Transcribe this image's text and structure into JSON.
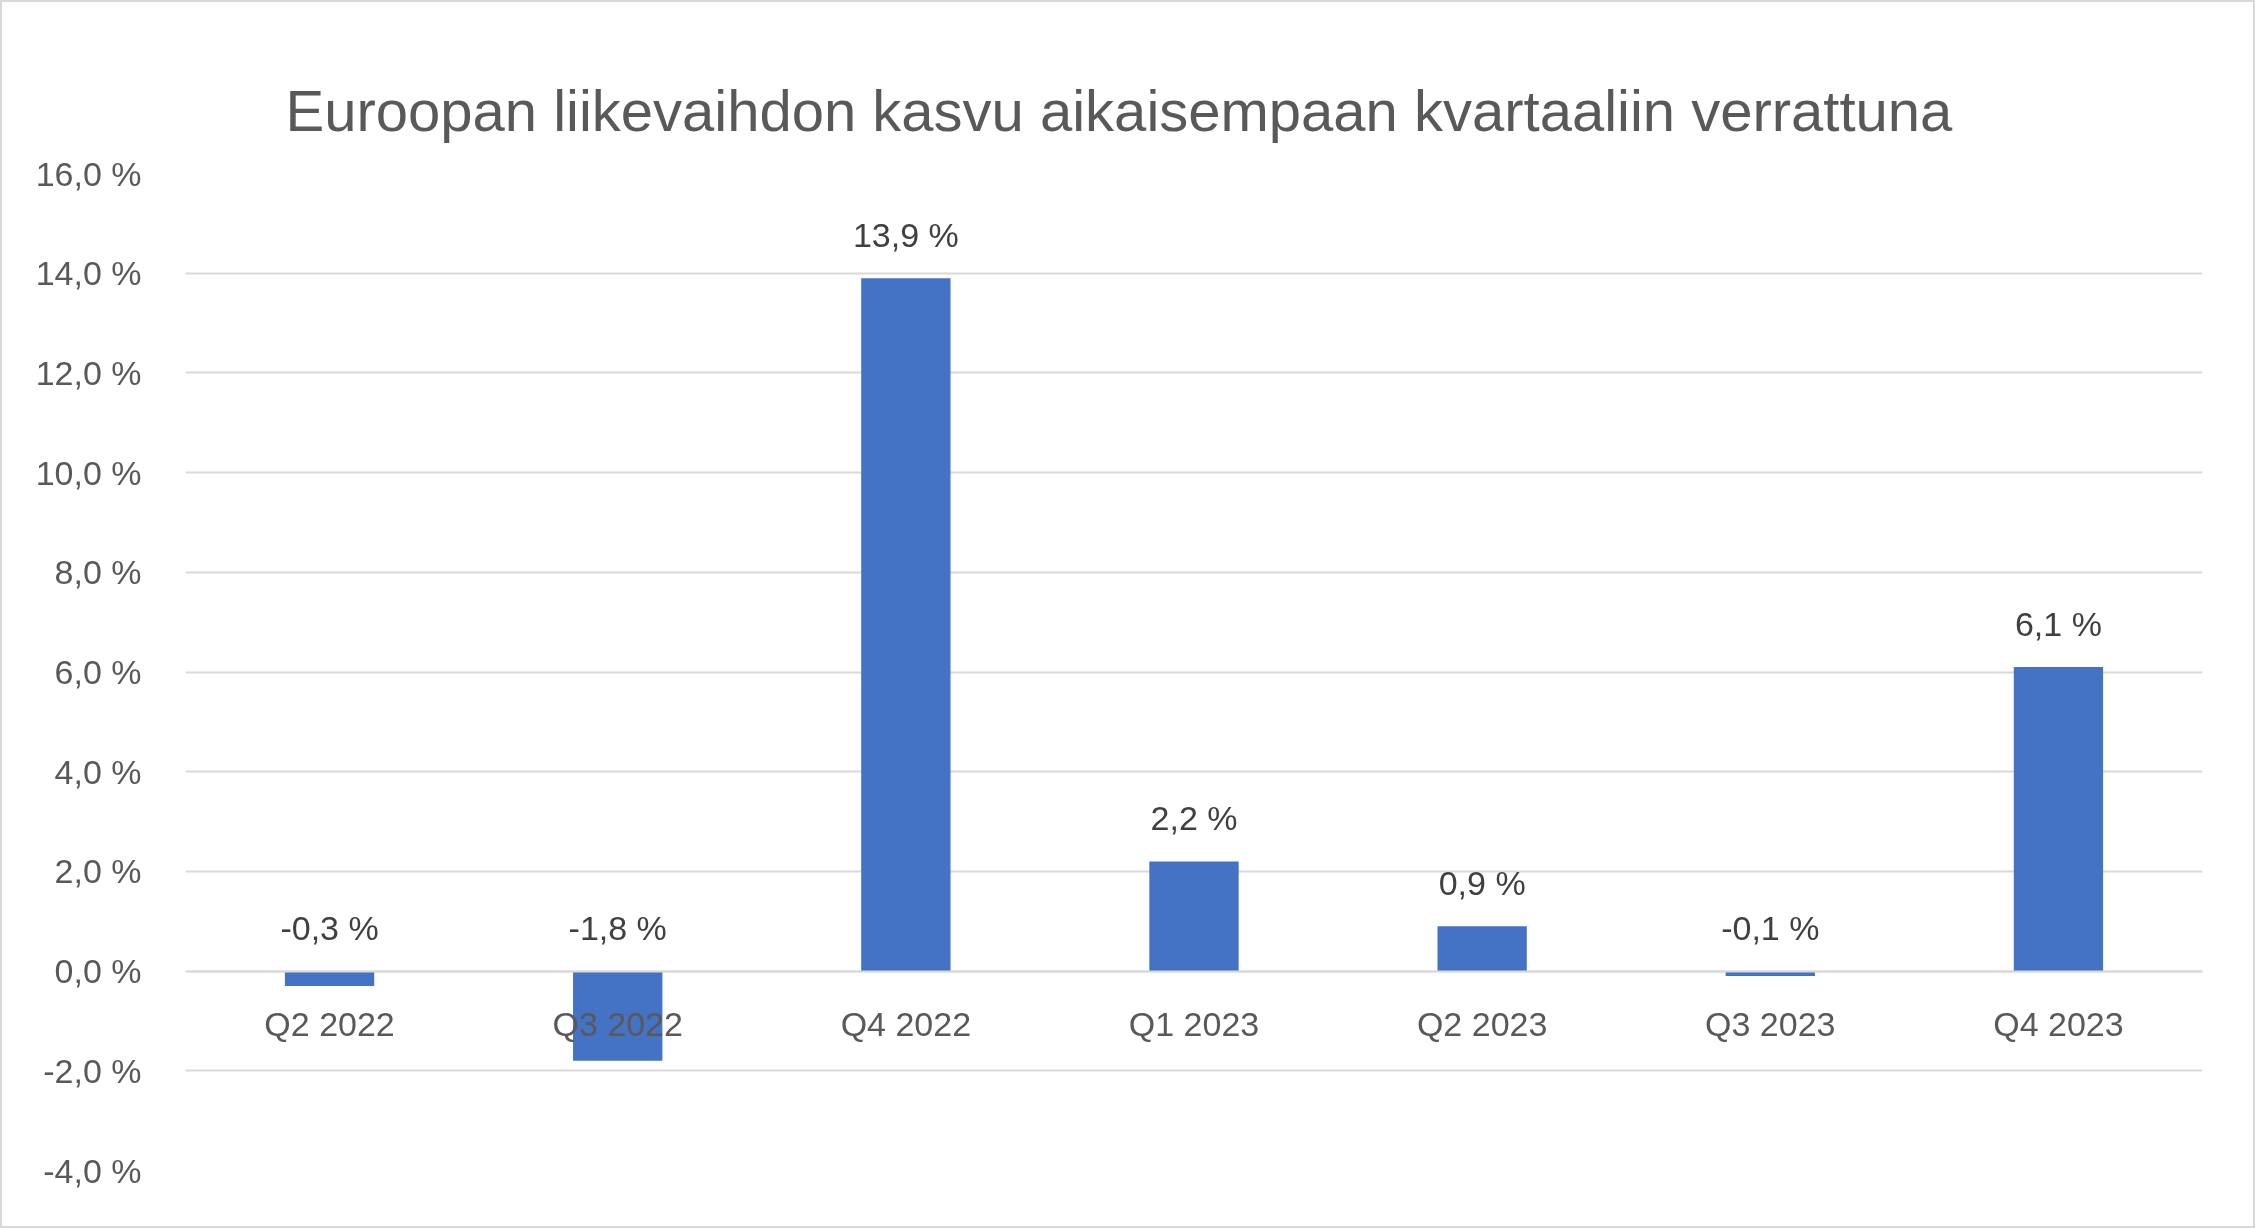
{
  "chart_data": {
    "type": "bar",
    "title": "Euroopan liikevaihdon kasvu aikaisempaan kvartaaliin verrattuna",
    "categories": [
      "Q2 2022",
      "Q3 2022",
      "Q4 2022",
      "Q1 2023",
      "Q2 2023",
      "Q3 2023",
      "Q4 2023"
    ],
    "values": [
      -0.3,
      -1.8,
      13.9,
      2.2,
      0.9,
      -0.1,
      6.1
    ],
    "color": "#4472c4",
    "value_labels": [
      "-0,3 %",
      "-1,8 %",
      "13,9 %",
      "2,2 %",
      "0,9 %",
      "-0,1 %",
      "6,1 %"
    ],
    "ylim": [
      -4,
      16
    ],
    "yticks": [
      {
        "value": -4,
        "label": "-4,0 %"
      },
      {
        "value": -2,
        "label": "-2,0 %"
      },
      {
        "value": 0,
        "label": "0,0 %"
      },
      {
        "value": 2,
        "label": "2,0 %"
      },
      {
        "value": 4,
        "label": "4,0 %"
      },
      {
        "value": 6,
        "label": "6,0 %"
      },
      {
        "value": 8,
        "label": "8,0 %"
      },
      {
        "value": 10,
        "label": "10,0 %"
      },
      {
        "value": 12,
        "label": "12,0 %"
      },
      {
        "value": 14,
        "label": "14,0 %"
      },
      {
        "value": 16,
        "label": "16,0 %"
      }
    ],
    "grid": "y"
  }
}
